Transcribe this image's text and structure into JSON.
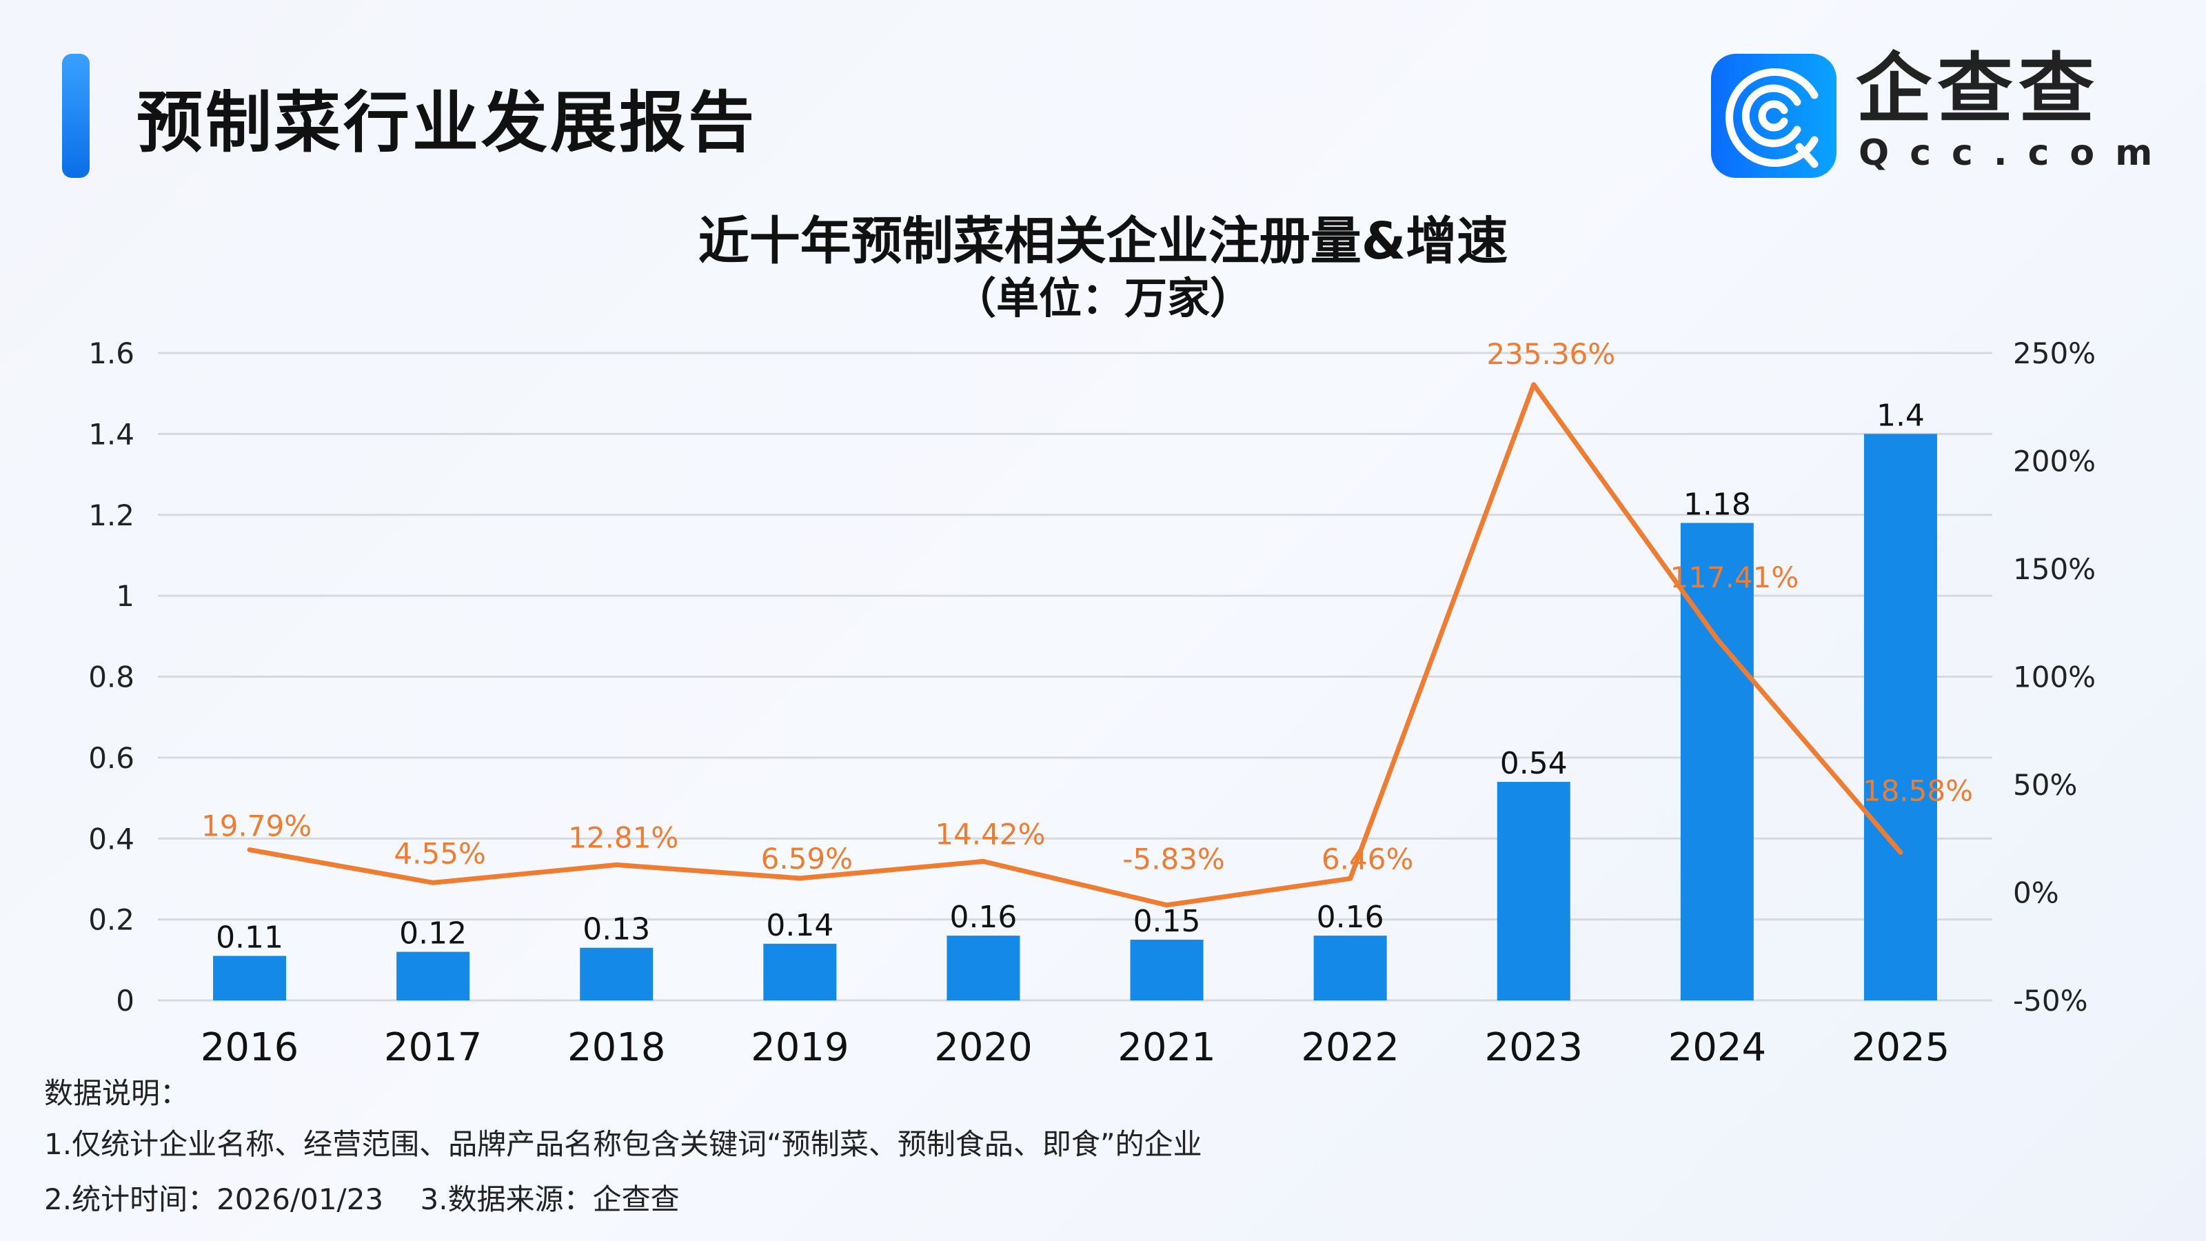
{
  "header": {
    "title": "预制菜行业发展报告",
    "logo_cn": "企查查",
    "logo_en": "Qcc.com",
    "accent": "#1a8cf0"
  },
  "chart_data": {
    "type": "bar+line",
    "title": "近十年预制菜相关企业注册量&增速",
    "subtitle": "（单位：万家）",
    "categories": [
      "2016",
      "2017",
      "2018",
      "2019",
      "2020",
      "2021",
      "2022",
      "2023",
      "2024",
      "2025"
    ],
    "series": [
      {
        "type": "bar",
        "axis": "left",
        "color": "#1589e8",
        "values": [
          0.11,
          0.12,
          0.13,
          0.14,
          0.16,
          0.15,
          0.16,
          0.54,
          1.18,
          1.4
        ],
        "labels": [
          "0.11",
          "0.12",
          "0.13",
          "0.14",
          "0.16",
          "0.15",
          "0.16",
          "0.54",
          "1.18",
          "1.4"
        ]
      },
      {
        "type": "line",
        "axis": "right",
        "color": "#ee7d31",
        "values": [
          19.79,
          4.55,
          12.81,
          6.59,
          14.42,
          -5.83,
          6.46,
          235.36,
          117.41,
          18.58
        ],
        "labels": [
          "19.79%",
          "4.55%",
          "12.81%",
          "6.59%",
          "14.42%",
          "-5.83%",
          "6.46%",
          "235.36%",
          "117.41%",
          "18.58%"
        ]
      }
    ],
    "y_left": {
      "range": [
        0,
        1.6
      ],
      "ticks": [
        "0",
        "0.2",
        "0.4",
        "0.6",
        "0.8",
        "1",
        "1.2",
        "1.4",
        "1.6"
      ]
    },
    "y_right": {
      "range": [
        -50,
        250
      ],
      "ticks": [
        "-50%",
        "0%",
        "50%",
        "100%",
        "150%",
        "200%",
        "250%"
      ]
    },
    "grid": true,
    "legend": "none"
  },
  "notes": {
    "heading": "数据说明：",
    "line1": "1.仅统计企业名称、经营范围、品牌产品名称包含关键词“预制菜、预制食品、即食”的企业",
    "line2": "2.统计时间：2026/01/23    3.数据来源：企查查"
  }
}
